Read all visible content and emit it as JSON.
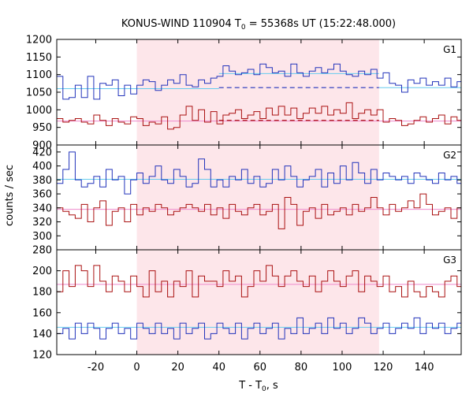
{
  "chart_data": {
    "type": "line",
    "title": "KONUS-WIND 110904 T",
    "title_sub": "0",
    "title_rest": " = 55368s UT (15:22:48.000)",
    "xlabel": "T - T",
    "xlabel_sub": "0",
    "xlabel_rest": ", s",
    "ylabel": "counts / sec",
    "xlim": [
      -39,
      158
    ],
    "xticks": [
      -20,
      0,
      20,
      40,
      60,
      80,
      100,
      120,
      140
    ],
    "bin_width": 3,
    "x_start": -39,
    "highlight_interval": [
      0,
      118
    ],
    "colors": {
      "high": "#2233bb",
      "low": "#aa1111",
      "high_bg": "#66ccee",
      "low_bg": "#ee88cc",
      "shade": "#fde6ea"
    },
    "panels": [
      {
        "label": "G1",
        "ylim": [
          900,
          1200
        ],
        "yticks": [
          900,
          950,
          1000,
          1050,
          1100,
          1150,
          1200
        ],
        "series": [
          {
            "color_key": "high",
            "values": [
              1095,
              1030,
              1035,
              1070,
              1035,
              1095,
              1030,
              1075,
              1070,
              1085,
              1040,
              1070,
              1045,
              1070,
              1085,
              1080,
              1055,
              1070,
              1085,
              1075,
              1100,
              1070,
              1065,
              1085,
              1075,
              1090,
              1095,
              1125,
              1110,
              1100,
              1105,
              1115,
              1100,
              1130,
              1120,
              1105,
              1110,
              1095,
              1130,
              1105,
              1095,
              1110,
              1120,
              1105,
              1115,
              1130,
              1110,
              1100,
              1095,
              1110,
              1100,
              1115,
              1090,
              1105,
              1075,
              1070,
              1050,
              1085,
              1075,
              1090,
              1070,
              1080,
              1070,
              1090,
              1065,
              1080
            ],
            "background": [
              {
                "from": -39,
                "to": 40,
                "level": 1060,
                "color_key": "high_bg"
              },
              {
                "from": 40,
                "to": 118,
                "level": 1103,
                "color_key": "high_bg"
              },
              {
                "from": 118,
                "to": 158,
                "level": 1063,
                "color_key": "high_bg"
              },
              {
                "from": 40,
                "to": 118,
                "level": 1063,
                "color_key": "high",
                "dashed": true
              }
            ]
          },
          {
            "color_key": "low",
            "values": [
              975,
              965,
              970,
              975,
              965,
              960,
              985,
              970,
              955,
              975,
              965,
              960,
              980,
              975,
              955,
              965,
              960,
              980,
              945,
              950,
              985,
              1010,
              970,
              1000,
              965,
              995,
              960,
              985,
              990,
              1000,
              975,
              985,
              995,
              975,
              1005,
              985,
              1010,
              985,
              1005,
              975,
              990,
              1005,
              990,
              1010,
              985,
              1000,
              990,
              1020,
              975,
              990,
              1000,
              985,
              1000,
              965,
              975,
              970,
              955,
              960,
              970,
              980,
              965,
              975,
              985,
              960,
              980,
              970
            ],
            "background": [
              {
                "from": -39,
                "to": 158,
                "level": 968,
                "color_key": "low_bg"
              },
              {
                "from": 40,
                "to": 118,
                "level": 970,
                "color_key": "low",
                "dashed": true
              }
            ]
          }
        ]
      },
      {
        "label": "G2",
        "ylim": [
          280,
          430
        ],
        "yticks": [
          280,
          300,
          320,
          340,
          360,
          380,
          400,
          420
        ],
        "series": [
          {
            "color_key": "high",
            "values": [
              375,
              395,
              420,
              380,
              370,
              375,
              385,
              370,
              395,
              380,
              385,
              360,
              380,
              390,
              375,
              385,
              400,
              380,
              375,
              395,
              385,
              370,
              375,
              410,
              395,
              370,
              380,
              370,
              385,
              380,
              395,
              375,
              385,
              370,
              375,
              395,
              380,
              400,
              385,
              370,
              380,
              385,
              395,
              370,
              390,
              375,
              400,
              380,
              405,
              390,
              375,
              395,
              380,
              390,
              385,
              380,
              385,
              375,
              390,
              385,
              380,
              375,
              390,
              380,
              385,
              375
            ],
            "background": [
              {
                "from": -39,
                "to": 158,
                "level": 381,
                "color_key": "high_bg"
              }
            ]
          },
          {
            "color_key": "low",
            "values": [
              340,
              335,
              330,
              325,
              345,
              320,
              340,
              350,
              315,
              335,
              340,
              320,
              345,
              330,
              340,
              335,
              345,
              340,
              330,
              335,
              340,
              345,
              340,
              335,
              345,
              330,
              340,
              325,
              345,
              335,
              330,
              340,
              345,
              330,
              335,
              345,
              310,
              355,
              345,
              315,
              335,
              340,
              325,
              345,
              330,
              335,
              340,
              330,
              345,
              335,
              340,
              355,
              340,
              330,
              345,
              335,
              340,
              350,
              340,
              360,
              345,
              330,
              335,
              340,
              325,
              340
            ],
            "background": [
              {
                "from": -39,
                "to": 158,
                "level": 338,
                "color_key": "low_bg"
              }
            ]
          }
        ]
      },
      {
        "label": "G3",
        "ylim": [
          120,
          220
        ],
        "yticks": [
          120,
          140,
          160,
          180,
          200
        ],
        "series": [
          {
            "color_key": "low",
            "values": [
              180,
              200,
              185,
              205,
              200,
              185,
              205,
              190,
              180,
              195,
              190,
              180,
              195,
              185,
              175,
              200,
              180,
              190,
              175,
              190,
              185,
              200,
              175,
              195,
              190,
              190,
              185,
              200,
              190,
              195,
              175,
              185,
              200,
              190,
              205,
              195,
              185,
              195,
              200,
              190,
              185,
              195,
              180,
              190,
              200,
              190,
              185,
              195,
              200,
              180,
              195,
              190,
              185,
              195,
              180,
              185,
              175,
              190,
              180,
              175,
              185,
              180,
              175,
              190,
              195,
              185
            ],
            "background": [
              {
                "from": -39,
                "to": 158,
                "level": 187,
                "color_key": "low_bg"
              }
            ]
          },
          {
            "color_key": "high",
            "values": [
              140,
              145,
              135,
              150,
              140,
              150,
              145,
              135,
              145,
              150,
              140,
              145,
              135,
              150,
              145,
              140,
              150,
              140,
              145,
              135,
              150,
              140,
              145,
              150,
              135,
              140,
              150,
              145,
              140,
              150,
              135,
              145,
              150,
              140,
              145,
              150,
              135,
              145,
              140,
              155,
              140,
              145,
              150,
              140,
              155,
              145,
              150,
              140,
              145,
              155,
              150,
              140,
              145,
              150,
              140,
              145,
              150,
              145,
              155,
              140,
              150,
              145,
              150,
              140,
              145,
              150
            ],
            "background": [
              {
                "from": -39,
                "to": 158,
                "level": 146,
                "color_key": "high_bg"
              }
            ]
          }
        ]
      }
    ]
  }
}
